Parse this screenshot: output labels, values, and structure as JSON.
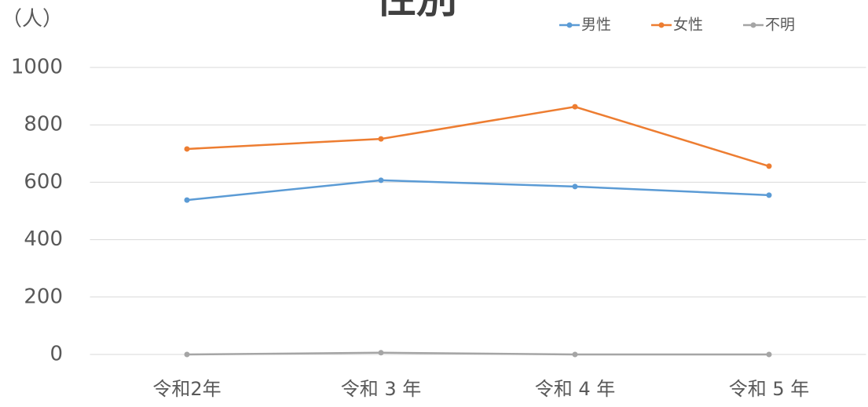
{
  "chart_data": {
    "type": "line",
    "title": "性別",
    "y_label": "（人）",
    "categories": [
      "令和2年",
      "令和 3 年",
      "令和 4 年",
      "令和 5 年"
    ],
    "series": [
      {
        "name": "男性",
        "color": "#5b9bd5",
        "values": [
          538,
          607,
          585,
          555
        ]
      },
      {
        "name": "女性",
        "color": "#ed7d31",
        "values": [
          716,
          751,
          863,
          656
        ]
      },
      {
        "name": "不明",
        "color": "#a5a5a5",
        "values": [
          0,
          6,
          0,
          0
        ]
      }
    ],
    "ylim": [
      0,
      1000
    ],
    "yticks": [
      0,
      200,
      400,
      600,
      800,
      1000
    ],
    "grid": true,
    "legend": "top-right"
  }
}
